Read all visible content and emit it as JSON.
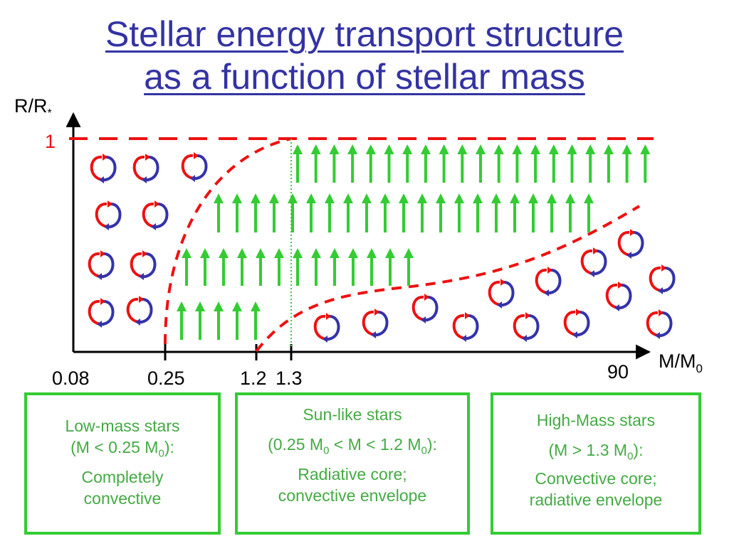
{
  "title": {
    "line1": "Stellar energy transport structure",
    "line2": "as a function of stellar mass"
  },
  "axes": {
    "y_label": "R/R",
    "y_label_sub": "*",
    "y_tick": "1",
    "x_label": "M/M",
    "x_label_sub": "0",
    "x_ticks": [
      "0.08",
      "0.25",
      "1.2",
      "1.3",
      "90"
    ]
  },
  "colors": {
    "title": "#3333a3",
    "axis": "#000000",
    "boundary": "#ee1111",
    "radiative_arrow": "#33cc33",
    "cell_warm": "#ee1111",
    "cell_cool": "#3333aa",
    "box_border": "#33cc33",
    "box_text": "#44aa44"
  },
  "icons": {
    "convection": "convection-cell-icon",
    "radiation": "upward-arrow-icon"
  },
  "boxes": {
    "low": {
      "line1": "Low-mass stars",
      "line2a": "(M < 0.25 M",
      "line2sub": "0",
      "line2b": "):",
      "line3": "Completely",
      "line4": "convective"
    },
    "sun": {
      "line1": "Sun-like stars",
      "line2a": "(0.25 M",
      "line2sub1": "0",
      "line2b": " < M < 1.2 M",
      "line2sub2": "0",
      "line2c": "):",
      "line3": "Radiative core;",
      "line4": "convective envelope"
    },
    "high": {
      "line1": "High-Mass stars",
      "line2a": "(M > 1.3 M",
      "line2sub": "0",
      "line2b": "):",
      "line3": "Convective core;",
      "line4": "radiative envelope"
    }
  }
}
